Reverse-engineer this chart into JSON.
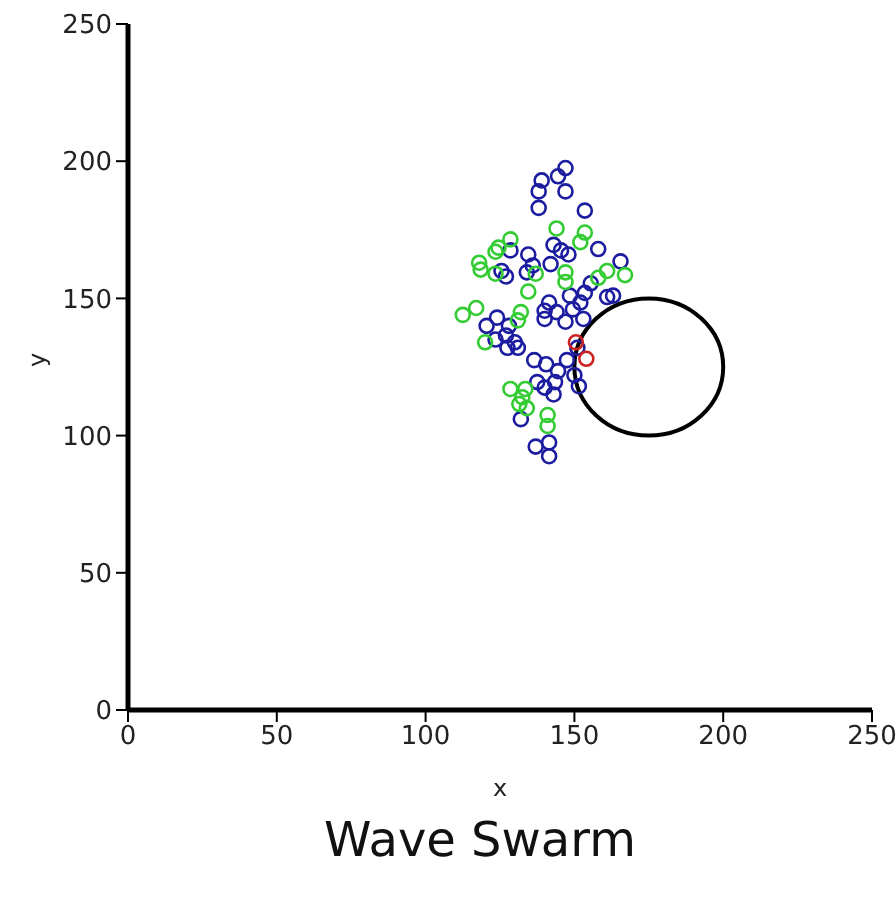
{
  "chart_data": {
    "type": "scatter",
    "title": "Wave Swarm",
    "xlabel": "x",
    "ylabel": "y",
    "xlim": [
      0,
      250
    ],
    "ylim": [
      0,
      250
    ],
    "xticks": [
      0,
      50,
      100,
      150,
      200,
      250
    ],
    "yticks": [
      0,
      50,
      100,
      150,
      200,
      250
    ],
    "grid": false,
    "legend": false,
    "marker": "circle",
    "series": [
      {
        "color": "#1c1ca0",
        "x": [
          147,
          144.5,
          139,
          138,
          147,
          138,
          153.5,
          158,
          128.5,
          134.5,
          143,
          145.5,
          148,
          142,
          136,
          134,
          125.5,
          127,
          165.5,
          148.5,
          153.5,
          155.5,
          161,
          163,
          141.5,
          152,
          140,
          144,
          149.5,
          147,
          153,
          140,
          120.5,
          124,
          128,
          123.5,
          127,
          130,
          131,
          127.5,
          136.5,
          140.5,
          144.5,
          147.5,
          137.5,
          140,
          143.5,
          143,
          151.5,
          150,
          151,
          132,
          137,
          141.5,
          141.5
        ],
        "values": [
          197.5,
          194.5,
          193,
          189,
          189,
          183,
          182,
          168,
          167.5,
          166,
          169.5,
          167.5,
          166,
          162.5,
          162,
          159.5,
          160,
          158,
          163.5,
          151,
          152,
          155.5,
          150.5,
          151,
          148.5,
          148.5,
          145.5,
          145,
          146,
          141.5,
          142.5,
          142.5,
          140,
          143,
          140,
          135,
          136.5,
          134,
          132,
          132,
          127.5,
          126,
          123.5,
          127.5,
          119.5,
          117.5,
          119.5,
          115,
          118,
          122,
          132,
          106,
          96,
          97.5,
          92.5
        ]
      },
      {
        "color": "#33cc33",
        "x": [
          144,
          153.5,
          152,
          128.5,
          123.5,
          124.5,
          118,
          118.5,
          123.5,
          137,
          147,
          147,
          161,
          158,
          167,
          134.5,
          132,
          131,
          112.5,
          117,
          120,
          128.5,
          133.5,
          132.5,
          131.5,
          134,
          141,
          141
        ],
        "values": [
          175.5,
          174,
          170.5,
          171.5,
          167,
          168.5,
          163,
          160.5,
          159,
          159,
          159.5,
          156,
          160,
          157.5,
          158.5,
          152.5,
          145,
          142,
          144,
          146.5,
          134,
          117,
          117,
          114,
          111.5,
          110,
          107.5,
          103.5
        ]
      },
      {
        "color": "#cc2222",
        "x": [
          154,
          150.5
        ],
        "values": [
          128,
          134
        ]
      }
    ]
  }
}
